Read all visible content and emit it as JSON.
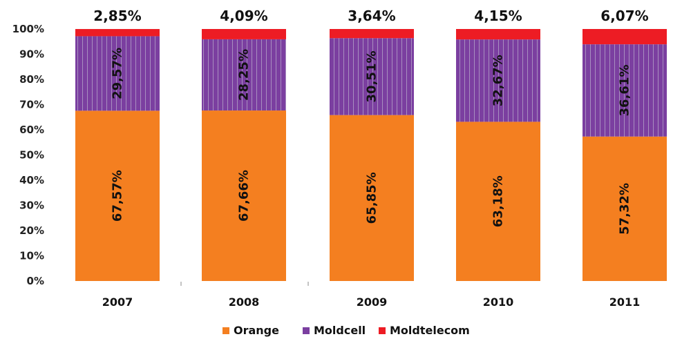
{
  "chart_data": {
    "type": "bar",
    "stacked": true,
    "categories": [
      "2007",
      "2008",
      "2009",
      "2010",
      "2011"
    ],
    "series": [
      {
        "name": "Orange",
        "color": "#f47f20",
        "values": [
          67.57,
          67.66,
          65.85,
          63.18,
          57.32
        ],
        "labels": [
          "67,57%",
          "67,66%",
          "65,85%",
          "63,18%",
          "57,32%"
        ]
      },
      {
        "name": "Moldcell",
        "color": "#7b3fa0",
        "values": [
          29.57,
          28.25,
          30.51,
          32.67,
          36.61
        ],
        "labels": [
          "29,57%",
          "28,25%",
          "30,51%",
          "32,67%",
          "36,61%"
        ]
      },
      {
        "name": "Moldtelecom",
        "color": "#ed1c24",
        "values": [
          2.85,
          4.09,
          3.64,
          4.15,
          6.07
        ],
        "labels": [
          "2,85%",
          "4,09%",
          "3,64%",
          "4,15%",
          "6,07%"
        ]
      }
    ],
    "yticks": [
      "0%",
      "10%",
      "20%",
      "30%",
      "40%",
      "50%",
      "60%",
      "70%",
      "80%",
      "90%",
      "100%"
    ],
    "ylim": [
      0,
      100
    ],
    "legend_position": "bottom",
    "grid": false
  }
}
